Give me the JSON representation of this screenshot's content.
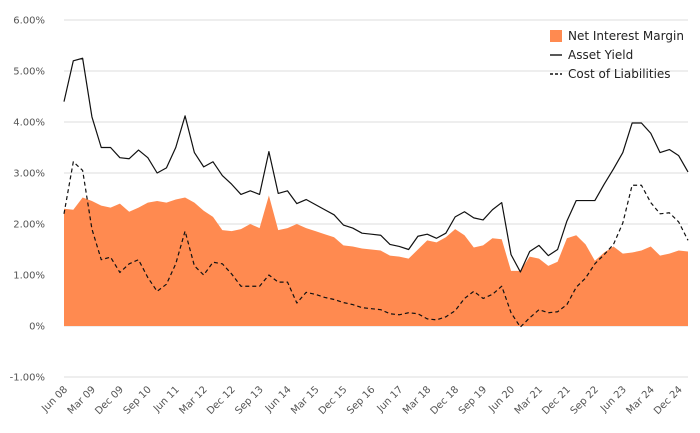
{
  "chart_data": {
    "type": "area",
    "title": "",
    "xlabel": "",
    "ylabel": "",
    "ylim": [
      -1.0,
      6.0
    ],
    "y_ticks": [
      -1,
      0,
      1,
      2,
      3,
      4,
      5,
      6
    ],
    "y_tick_labels": [
      "-1.00%",
      "0%",
      "1.00%",
      "2.00%",
      "3.00%",
      "4.00%",
      "5.00%",
      "6.00%"
    ],
    "grid": "horizontal",
    "legend_position": "top-right",
    "x_tick_labels": [
      "Jun 08",
      "Mar 09",
      "Dec 09",
      "Sep 10",
      "Jun 11",
      "Mar 12",
      "Dec 12",
      "Sep 13",
      "Jun 14",
      "Mar 15",
      "Dec 15",
      "Sep 16",
      "Jun 17",
      "Mar 18",
      "Dec 18",
      "Sep 19",
      "Jun 20",
      "Mar 21",
      "Dec 21",
      "Sep 22",
      "Jun 23",
      "Mar 24",
      "Dec 24"
    ],
    "x_tick_every": 3,
    "series": [
      {
        "name": "Net Interest Margin",
        "style": "area",
        "color": "#ff8a50",
        "values": [
          2.3,
          2.28,
          2.52,
          2.45,
          2.36,
          2.32,
          2.4,
          2.24,
          2.32,
          2.42,
          2.45,
          2.42,
          2.48,
          2.52,
          2.42,
          2.26,
          2.14,
          1.88,
          1.86,
          1.9,
          2.0,
          1.92,
          2.56,
          1.88,
          1.92,
          2.0,
          1.92,
          1.86,
          1.8,
          1.74,
          1.58,
          1.56,
          1.52,
          1.5,
          1.48,
          1.38,
          1.36,
          1.32,
          1.5,
          1.68,
          1.64,
          1.74,
          1.9,
          1.78,
          1.54,
          1.58,
          1.72,
          1.7,
          1.08,
          1.08,
          1.36,
          1.32,
          1.18,
          1.26,
          1.72,
          1.78,
          1.6,
          1.28,
          1.44,
          1.56,
          1.42,
          1.44,
          1.48,
          1.56,
          1.38,
          1.42,
          1.48,
          1.46
        ]
      },
      {
        "name": "Asset Yield",
        "style": "solid",
        "color": "#111111",
        "values": [
          4.4,
          5.2,
          5.25,
          4.1,
          3.5,
          3.5,
          3.3,
          3.28,
          3.45,
          3.3,
          3.0,
          3.1,
          3.5,
          4.12,
          3.4,
          3.12,
          3.22,
          2.95,
          2.78,
          2.58,
          2.65,
          2.58,
          3.42,
          2.6,
          2.65,
          2.4,
          2.48,
          2.38,
          2.28,
          2.18,
          1.98,
          1.92,
          1.82,
          1.8,
          1.78,
          1.6,
          1.56,
          1.5,
          1.76,
          1.8,
          1.72,
          1.82,
          2.14,
          2.24,
          2.12,
          2.08,
          2.28,
          2.42,
          1.4,
          1.06,
          1.46,
          1.58,
          1.38,
          1.5,
          2.06,
          2.46,
          2.46,
          2.46,
          2.78,
          3.08,
          3.4,
          3.98,
          3.98,
          3.78,
          3.4,
          3.46,
          3.34,
          3.02
        ]
      },
      {
        "name": "Cost of Liabilities",
        "style": "dashed",
        "color": "#111111",
        "values": [
          2.2,
          3.22,
          3.05,
          1.9,
          1.3,
          1.35,
          1.05,
          1.22,
          1.3,
          0.95,
          0.68,
          0.82,
          1.22,
          1.86,
          1.18,
          1.0,
          1.25,
          1.22,
          1.02,
          0.78,
          0.78,
          0.78,
          1.0,
          0.86,
          0.86,
          0.45,
          0.66,
          0.62,
          0.56,
          0.52,
          0.46,
          0.42,
          0.36,
          0.34,
          0.32,
          0.24,
          0.22,
          0.26,
          0.24,
          0.14,
          0.12,
          0.18,
          0.3,
          0.54,
          0.68,
          0.54,
          0.62,
          0.78,
          0.26,
          -0.02,
          0.16,
          0.32,
          0.26,
          0.28,
          0.42,
          0.76,
          0.94,
          1.22,
          1.4,
          1.6,
          2.02,
          2.76,
          2.76,
          2.42,
          2.2,
          2.22,
          2.04,
          1.68
        ]
      }
    ]
  }
}
